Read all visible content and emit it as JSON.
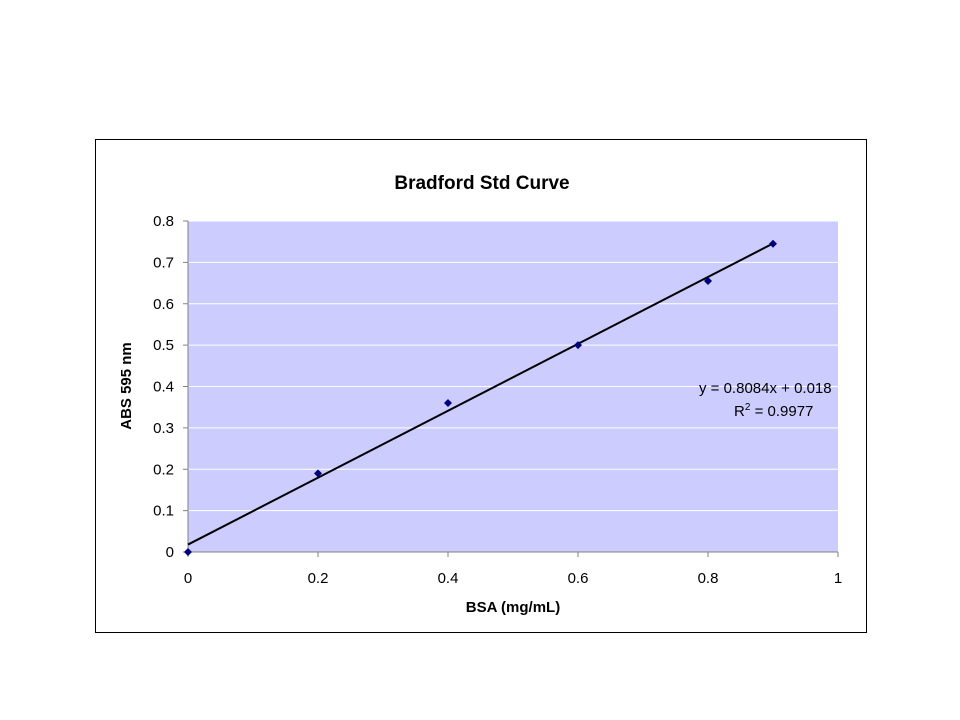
{
  "chart_data": {
    "type": "scatter",
    "title": "Bradford Std Curve",
    "xlabel": "BSA (mg/mL)",
    "ylabel": "ABS 595 nm",
    "xlim": [
      0,
      1
    ],
    "ylim": [
      0,
      0.8
    ],
    "x_ticks": [
      "0",
      "0.2",
      "0.4",
      "0.6",
      "0.8",
      "1"
    ],
    "y_ticks": [
      "0",
      "0.1",
      "0.2",
      "0.3",
      "0.4",
      "0.5",
      "0.6",
      "0.7",
      "0.8"
    ],
    "grid": true,
    "legend": "none",
    "series": [
      {
        "points": [
          {
            "x": 0,
            "y": 0
          },
          {
            "x": 0.2,
            "y": 0.19
          },
          {
            "x": 0.4,
            "y": 0.36
          },
          {
            "x": 0.6,
            "y": 0.5
          },
          {
            "x": 0.8,
            "y": 0.655
          },
          {
            "x": 0.9,
            "y": 0.745
          }
        ],
        "color": "#00007f"
      }
    ],
    "trendline": {
      "slope": 0.8084,
      "intercept": 0.018,
      "x_range": [
        0,
        0.9
      ],
      "equation_label": "y = 0.8084x + 0.018",
      "r2_base": "R",
      "r2_sup": "2",
      "r2_rest": " = 0.9977",
      "color": "#000000"
    },
    "plot_bg": "#ccccff",
    "grid_color": "#ffffff"
  }
}
